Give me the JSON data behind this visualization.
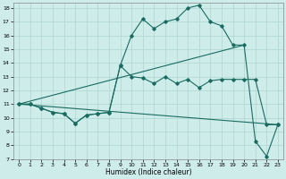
{
  "xlabel": "Humidex (Indice chaleur)",
  "bg_color": "#cdecea",
  "grid_color": "#aed4d0",
  "line_color": "#1a6b60",
  "xlim": [
    -0.5,
    23.5
  ],
  "ylim": [
    7,
    18.4
  ],
  "yticks": [
    7,
    8,
    9,
    10,
    11,
    12,
    13,
    14,
    15,
    16,
    17,
    18
  ],
  "xticks": [
    0,
    1,
    2,
    3,
    4,
    5,
    6,
    7,
    8,
    9,
    10,
    11,
    12,
    13,
    14,
    15,
    16,
    17,
    18,
    19,
    20,
    21,
    22,
    23
  ],
  "line1_x": [
    0,
    1,
    2,
    3,
    4,
    5,
    6,
    7,
    8,
    9,
    10,
    11,
    12,
    13,
    14,
    15,
    16,
    17,
    18,
    19,
    20,
    21,
    22,
    23
  ],
  "line1_y": [
    11,
    11,
    10.7,
    10.4,
    10.3,
    9.6,
    10.2,
    10.3,
    10.4,
    13.8,
    13.0,
    12.9,
    12.5,
    13.0,
    12.5,
    12.8,
    12.2,
    12.7,
    12.8,
    12.8,
    12.8,
    12.8,
    9.5,
    9.5
  ],
  "line2_x": [
    0,
    1,
    2,
    3,
    4,
    5,
    6,
    7,
    8,
    9,
    10,
    11,
    12,
    13,
    14,
    15,
    16,
    17,
    18,
    19,
    20,
    21,
    22,
    23
  ],
  "line2_y": [
    11,
    11,
    10.7,
    10.4,
    10.3,
    9.6,
    10.2,
    10.3,
    10.4,
    13.8,
    16.0,
    17.2,
    16.5,
    17.0,
    17.2,
    18.0,
    18.2,
    17.0,
    16.7,
    15.3,
    15.3,
    8.3,
    7.2,
    9.5
  ],
  "line3_x": [
    0,
    20
  ],
  "line3_y": [
    11,
    15.3
  ],
  "line4_x": [
    0,
    23
  ],
  "line4_y": [
    11,
    9.5
  ]
}
